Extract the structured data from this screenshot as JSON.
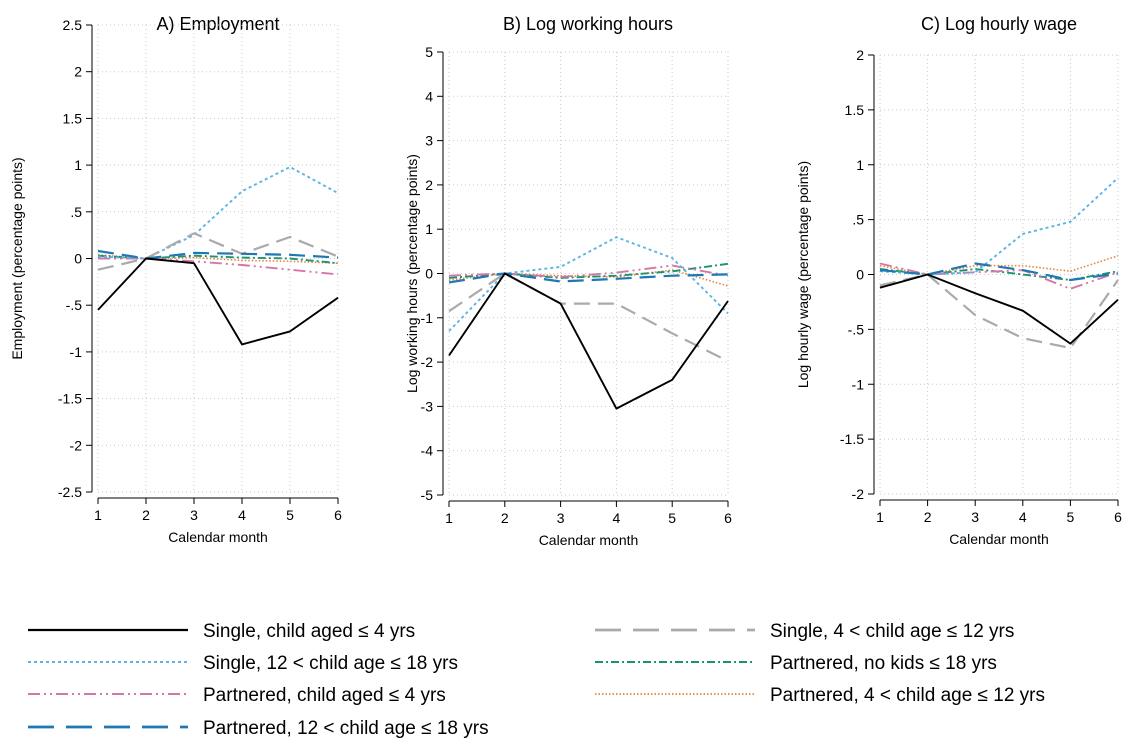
{
  "chart_data": {
    "series_styles": [
      {
        "name": "Single, child aged ≤ 4 yrs",
        "color": "#000000",
        "dash": "solid"
      },
      {
        "name": "Single, 4 < child age ≤ 12 yrs",
        "color": "#aaaaaa",
        "dash": "long-dash"
      },
      {
        "name": "Single, 12 < child age ≤ 18 yrs",
        "color": "#5ab4e6",
        "dash": "dot"
      },
      {
        "name": "Partnered, no kids ≤ 18 yrs",
        "color": "#1a9470",
        "dash": "dash-dot"
      },
      {
        "name": "Partnered, child aged ≤ 4 yrs",
        "color": "#d477a8",
        "dash": "dash-dot-dot"
      },
      {
        "name": "Partnered, 4 < child age ≤ 12 yrs",
        "color": "#e8843a",
        "dash": "fine-dot"
      },
      {
        "name": "Partnered, 12 < child age ≤ 18 yrs",
        "color": "#1f77b4",
        "dash": "long-dash"
      }
    ],
    "legend_order": [
      "Single, child aged ≤ 4 yrs",
      "Single, 4 < child age ≤ 12 yrs",
      "Single, 12 < child age ≤ 18 yrs",
      "Partnered, no kids ≤ 18 yrs",
      "Partnered, child aged ≤ 4 yrs",
      "Partnered, 4 < child age ≤ 12 yrs",
      "Partnered, 12 < child age ≤ 18 yrs"
    ],
    "legend_position": "bottom",
    "panels": [
      {
        "type": "line",
        "title": "A) Employment",
        "xlabel": "Calendar month",
        "ylabel": "Employment (percentage points)",
        "x": [
          1,
          2,
          3,
          4,
          5,
          6
        ],
        "xlim": [
          1,
          6
        ],
        "ylim": [
          -2.5,
          2.5
        ],
        "yticks": [
          -2.5,
          -2,
          -1.5,
          -1,
          -0.5,
          0,
          0.5,
          1,
          1.5,
          2,
          2.5
        ],
        "ytick_labels": [
          "-2.5",
          "-2",
          "-1.5",
          "-1",
          "-.5",
          "0",
          ".5",
          "1",
          "1.5",
          "2",
          "2.5"
        ],
        "grid": true,
        "series": [
          {
            "name": "Single, child aged ≤ 4 yrs",
            "values": [
              -0.55,
              0,
              -0.05,
              -0.92,
              -0.78,
              -0.42
            ]
          },
          {
            "name": "Single, 4 < child age ≤ 12 yrs",
            "values": [
              -0.12,
              0,
              0.27,
              0.05,
              0.23,
              0.02
            ]
          },
          {
            "name": "Single, 12 < child age ≤ 18 yrs",
            "values": [
              0.02,
              0,
              0.25,
              0.72,
              0.98,
              0.7
            ]
          },
          {
            "name": "Partnered, no kids ≤ 18 yrs",
            "values": [
              0.03,
              0,
              0.03,
              0.01,
              0.0,
              -0.05
            ]
          },
          {
            "name": "Partnered, child aged ≤ 4 yrs",
            "values": [
              0.0,
              0,
              -0.03,
              -0.07,
              -0.12,
              -0.17
            ]
          },
          {
            "name": "Partnered, 4 < child age ≤ 12 yrs",
            "values": [
              0.04,
              0,
              0.01,
              -0.02,
              -0.03,
              -0.05
            ]
          },
          {
            "name": "Partnered, 12 < child age ≤ 18 yrs",
            "values": [
              0.08,
              0,
              0.06,
              0.05,
              0.04,
              0.01
            ]
          }
        ]
      },
      {
        "type": "line",
        "title": "B) Log working hours",
        "xlabel": "Calendar month",
        "ylabel": "Log working hours (percentage points)",
        "x": [
          1,
          2,
          3,
          4,
          5,
          6
        ],
        "xlim": [
          1,
          6
        ],
        "ylim": [
          -5,
          5
        ],
        "yticks": [
          -5,
          -4,
          -3,
          -2,
          -1,
          0,
          1,
          2,
          3,
          4,
          5
        ],
        "ytick_labels": [
          "-5",
          "-4",
          "-3",
          "-2",
          "-1",
          "0",
          "1",
          "2",
          "3",
          "4",
          "5"
        ],
        "grid": true,
        "series": [
          {
            "name": "Single, child aged ≤ 4 yrs",
            "values": [
              -1.85,
              0,
              -0.68,
              -3.05,
              -2.4,
              -0.62
            ]
          },
          {
            "name": "Single, 4 < child age ≤ 12 yrs",
            "values": [
              -0.85,
              0,
              -0.68,
              -0.68,
              -1.35,
              -1.98
            ]
          },
          {
            "name": "Single, 12 < child age ≤ 18 yrs",
            "values": [
              -1.3,
              0,
              0.15,
              0.82,
              0.35,
              -0.9
            ]
          },
          {
            "name": "Partnered, no kids ≤ 18 yrs",
            "values": [
              -0.1,
              0,
              -0.1,
              -0.05,
              0.05,
              0.22
            ]
          },
          {
            "name": "Partnered, child aged ≤ 4 yrs",
            "values": [
              -0.05,
              0,
              -0.08,
              0.02,
              0.18,
              -0.05
            ]
          },
          {
            "name": "Partnered, 4 < child age ≤ 12 yrs",
            "values": [
              -0.15,
              0,
              -0.05,
              -0.08,
              0.08,
              -0.28
            ]
          },
          {
            "name": "Partnered, 12 < child age ≤ 18 yrs",
            "values": [
              -0.2,
              0,
              -0.18,
              -0.12,
              -0.05,
              -0.02
            ]
          }
        ]
      },
      {
        "type": "line",
        "title": "C) Log hourly wage",
        "xlabel": "Calendar month",
        "ylabel": "Log hourly wage (percentage points)",
        "x": [
          1,
          2,
          3,
          4,
          5,
          6
        ],
        "xlim": [
          1,
          6
        ],
        "ylim": [
          -2,
          2
        ],
        "yticks": [
          -2,
          -1.5,
          -1,
          -0.5,
          0,
          0.5,
          1,
          1.5,
          2
        ],
        "ytick_labels": [
          "-2",
          "-1.5",
          "-1",
          "-.5",
          "0",
          ".5",
          "1",
          "1.5",
          "2"
        ],
        "grid": true,
        "series": [
          {
            "name": "Single, child aged ≤ 4 yrs",
            "values": [
              -0.12,
              0,
              -0.17,
              -0.33,
              -0.63,
              -0.23
            ]
          },
          {
            "name": "Single, 4 < child age ≤ 12 yrs",
            "values": [
              -0.1,
              0,
              -0.37,
              -0.58,
              -0.67,
              -0.05
            ]
          },
          {
            "name": "Single, 12 < child age ≤ 18 yrs",
            "values": [
              0.03,
              0,
              0.02,
              0.37,
              0.48,
              0.88
            ]
          },
          {
            "name": "Partnered, no kids ≤ 18 yrs",
            "values": [
              0.05,
              0,
              0.05,
              0.0,
              -0.05,
              0.03
            ]
          },
          {
            "name": "Partnered, child aged ≤ 4 yrs",
            "values": [
              0.1,
              0,
              0.02,
              0.04,
              -0.13,
              0.02
            ]
          },
          {
            "name": "Partnered, 4 < child age ≤ 12 yrs",
            "values": [
              0.08,
              0,
              0.08,
              0.08,
              0.03,
              0.17
            ]
          },
          {
            "name": "Partnered, 12 < child age ≤ 18 yrs",
            "values": [
              0.04,
              0,
              0.1,
              0.04,
              -0.05,
              0.01
            ]
          }
        ]
      }
    ]
  }
}
